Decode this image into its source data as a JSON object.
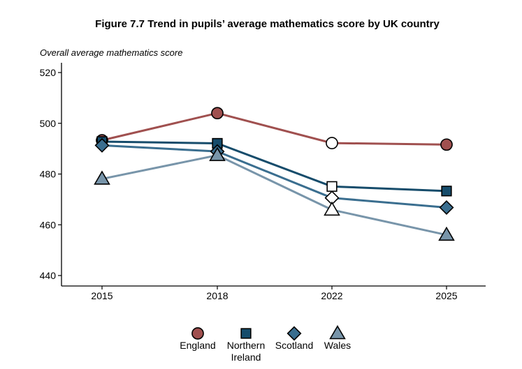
{
  "chart_data": {
    "type": "line",
    "title": "Figure 7.7 Trend in pupils’ average mathematics score by UK country",
    "ylabel": "Overall average mathematics score",
    "xlabel": "",
    "categories": [
      "2015",
      "2018",
      "2022",
      "2025"
    ],
    "ylim": [
      440,
      520
    ],
    "yticks": [
      440,
      460,
      480,
      500,
      520
    ],
    "grid": false,
    "legend_position": "bottom",
    "series": [
      {
        "name": "England",
        "marker": "circle",
        "color": "#A0504F",
        "values": [
          493.3,
          504.0,
          492.2,
          491.6
        ],
        "hollow": [
          false,
          false,
          true,
          false
        ]
      },
      {
        "name": "Northern Ireland",
        "marker": "square",
        "color": "#164C6B",
        "values": [
          492.8,
          492.1,
          475.1,
          473.3
        ],
        "hollow": [
          false,
          false,
          true,
          false
        ]
      },
      {
        "name": "Scotland",
        "marker": "diamond",
        "color": "#3A6E8F",
        "values": [
          491.3,
          488.9,
          470.6,
          466.8
        ],
        "hollow": [
          false,
          false,
          true,
          false
        ]
      },
      {
        "name": "Wales",
        "marker": "triangle",
        "color": "#7895AA",
        "values": [
          478.1,
          487.4,
          465.9,
          456.0
        ],
        "hollow": [
          false,
          false,
          true,
          false
        ]
      }
    ]
  }
}
